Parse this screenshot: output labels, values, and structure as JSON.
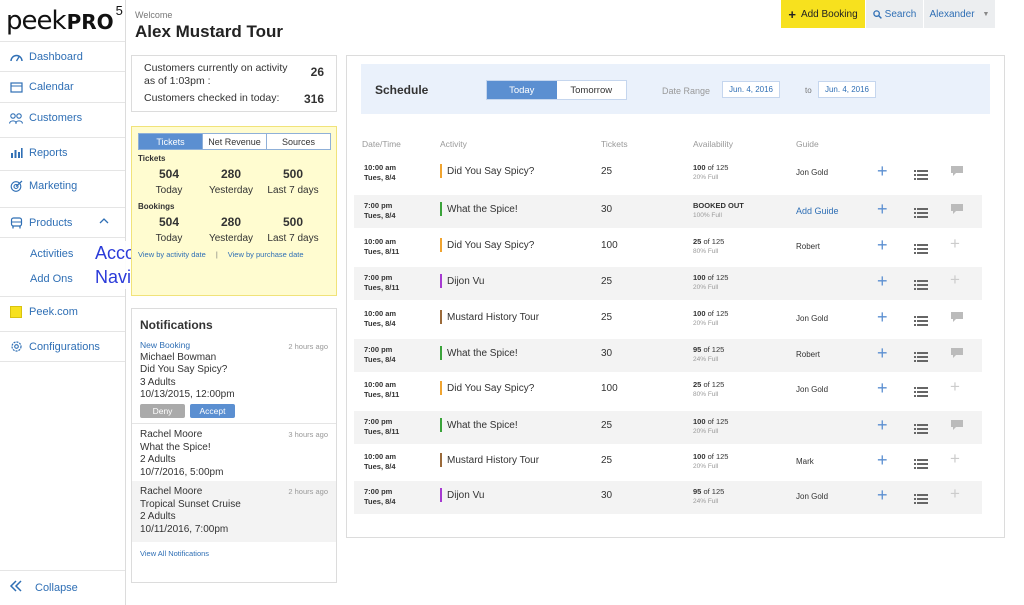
{
  "logo": {
    "text": "peek",
    "pro": "PRO",
    "version": "5"
  },
  "sidebar": {
    "items": [
      {
        "label": "Dashboard",
        "icon": "dashboard-icon"
      },
      {
        "label": "Calendar",
        "icon": "calendar-icon"
      },
      {
        "label": "Customers",
        "icon": "customers-icon"
      },
      {
        "label": "Reports",
        "icon": "reports-icon"
      },
      {
        "label": "Marketing",
        "icon": "marketing-icon"
      },
      {
        "label": "Products",
        "icon": "products-icon"
      },
      {
        "label": "Peek.com",
        "icon": "peek-icon"
      },
      {
        "label": "Configurations",
        "icon": "settings-icon"
      }
    ],
    "subitems": [
      "Activities",
      "Add Ons"
    ],
    "annotation": "Accordion Navigation",
    "collapse": "Collapse"
  },
  "header": {
    "welcome": "Welcome",
    "tour_name": "Alex Mustard Tour",
    "add_booking": "Add Booking",
    "search": "Search",
    "user": "Alexander"
  },
  "customers": {
    "on_activity_label": "Customers currently on activity as of 1:03pm :",
    "on_activity_value": "26",
    "checked_in_label": "Customers checked in today:",
    "checked_in_value": "316"
  },
  "stats": {
    "tabs": [
      "Tickets",
      "Net Revenue",
      "Sources"
    ],
    "active_tab": "Tickets",
    "tickets_label": "Tickets",
    "tickets": [
      {
        "value": "504",
        "label": "Today"
      },
      {
        "value": "280",
        "label": "Yesterday"
      },
      {
        "value": "500",
        "label": "Last 7 days"
      }
    ],
    "bookings_label": "Bookings",
    "bookings": [
      {
        "value": "504",
        "label": "Today"
      },
      {
        "value": "280",
        "label": "Yesterday"
      },
      {
        "value": "500",
        "label": "Last 7 days"
      }
    ],
    "link_activity": "View by activity date",
    "link_purchase": "View by purchase date"
  },
  "notifications": {
    "title": "Notifications",
    "items": [
      {
        "kind": "New Booking",
        "time": "2 hours ago",
        "name": "Michael Bowman",
        "activity": "Did You Say Spicy?",
        "qty": "3 Adults",
        "date": "10/13/2015, 12:00pm",
        "deny": "Deny",
        "accept": "Accept"
      },
      {
        "kind": "",
        "time": "3 hours ago",
        "name": "Rachel Moore",
        "activity": "What the Spice!",
        "qty": "2 Adults",
        "date": "10/7/2016, 5:00pm"
      },
      {
        "kind": "",
        "time": "2 hours ago",
        "name": "Rachel Moore",
        "activity": "Tropical Sunset Cruise",
        "qty": "2 Adults",
        "date": "10/11/2016, 7:00pm"
      }
    ],
    "view_all": "View All Notifications"
  },
  "schedule": {
    "title": "Schedule",
    "tabs": [
      "Today",
      "Tomorrow"
    ],
    "active_tab": "Today",
    "date_range_label": "Date Range",
    "date_from": "Jun. 4, 2016",
    "date_to_label": "to",
    "date_to": "Jun. 4, 2016",
    "columns": [
      "Date/Time",
      "Activity",
      "Tickets",
      "Availability",
      "Guide"
    ],
    "rows": [
      {
        "time": "10:00 am",
        "date": "Tues, 8/4",
        "color": "#f0a430",
        "activity": "Did You Say Spicy?",
        "tickets": "25",
        "avail": "100",
        "of": "of 125",
        "pct": "20% Full",
        "guide": "Jon Gold",
        "chat": true
      },
      {
        "time": "7:00 pm",
        "date": "Tues, 8/4",
        "color": "#3aa33a",
        "activity": "What the Spice!",
        "tickets": "30",
        "avail": "BOOKED OUT",
        "of": "",
        "pct": "100% Full",
        "guide": "Add Guide",
        "guide_link": true,
        "chat": true
      },
      {
        "time": "10:00 am",
        "date": "Tues, 8/11",
        "color": "#f0a430",
        "activity": "Did You Say Spicy?",
        "tickets": "100",
        "avail": "25",
        "of": "of 125",
        "pct": "80% Full",
        "guide": "Robert",
        "chat": false
      },
      {
        "time": "7:00 pm",
        "date": "Tues, 8/11",
        "color": "#a63ad1",
        "activity": "Dijon Vu",
        "tickets": "25",
        "avail": "100",
        "of": "of 125",
        "pct": "20% Full",
        "guide": "",
        "chat": false
      },
      {
        "time": "10:00 am",
        "date": "Tues, 8/4",
        "color": "#9b6a3a",
        "activity": "Mustard History Tour",
        "tickets": "25",
        "avail": "100",
        "of": "of 125",
        "pct": "20% Full",
        "guide": "Jon Gold",
        "chat": true
      },
      {
        "time": "7:00 pm",
        "date": "Tues, 8/4",
        "color": "#3aa33a",
        "activity": "What the Spice!",
        "tickets": "30",
        "avail": "95",
        "of": "of 125",
        "pct": "24% Full",
        "guide": "Robert",
        "chat": true
      },
      {
        "time": "10:00 am",
        "date": "Tues, 8/11",
        "color": "#f0a430",
        "activity": "Did You Say Spicy?",
        "tickets": "100",
        "avail": "25",
        "of": "of 125",
        "pct": "80% Full",
        "guide": "Jon Gold",
        "chat": false
      },
      {
        "time": "7:00 pm",
        "date": "Tues, 8/11",
        "color": "#3aa33a",
        "activity": "What the Spice!",
        "tickets": "25",
        "avail": "100",
        "of": "of 125",
        "pct": "20% Full",
        "guide": "",
        "chat": true
      },
      {
        "time": "10:00 am",
        "date": "Tues, 8/4",
        "color": "#9b6a3a",
        "activity": "Mustard History Tour",
        "tickets": "25",
        "avail": "100",
        "of": "of 125",
        "pct": "20% Full",
        "guide": "Mark",
        "chat": false
      },
      {
        "time": "7:00 pm",
        "date": "Tues, 8/4",
        "color": "#a63ad1",
        "activity": "Dijon Vu",
        "tickets": "30",
        "avail": "95",
        "of": "of 125",
        "pct": "24% Full",
        "guide": "Jon Gold",
        "chat": false
      }
    ]
  },
  "colors": {
    "accent": "#5b8fd1",
    "link": "#2f6fb5",
    "highlight": "#f7e11e",
    "panel": "#fffcd0"
  }
}
